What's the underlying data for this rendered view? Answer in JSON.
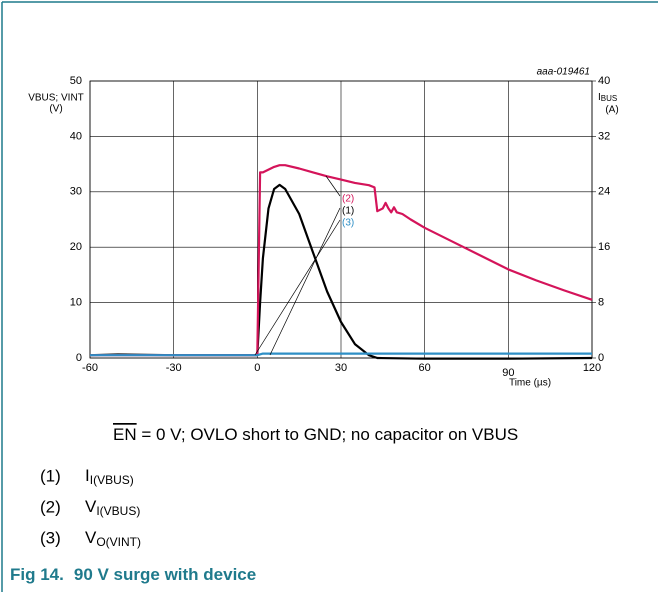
{
  "chart_data": {
    "type": "line",
    "code": "aaa-019461",
    "y_label": [
      "VBUS; VINT",
      "(V)"
    ],
    "y2_label": {
      "main": "I",
      "sub": "BUS",
      "unit": "(A)"
    },
    "x_label": "Time (µs)",
    "xlim": [
      -60,
      120
    ],
    "xticks": [
      -60,
      -30,
      0,
      30,
      60,
      90,
      120
    ],
    "ylim": [
      0,
      50
    ],
    "yticks": [
      0,
      10,
      20,
      30,
      40,
      50
    ],
    "y2lim": [
      0,
      40
    ],
    "y2ticks": [
      0,
      8,
      16,
      24,
      32,
      40
    ],
    "grid": true,
    "series": [
      {
        "name": "(1)",
        "color": "#000000",
        "axis": "y2",
        "x": [
          -60,
          -50,
          -30,
          0,
          1,
          2,
          4,
          6,
          8,
          10,
          15,
          20,
          25,
          30,
          35,
          40,
          43,
          60,
          90,
          120
        ],
        "values": [
          0.4,
          0.5,
          0.4,
          0.4,
          8,
          14.4,
          21.6,
          24.4,
          25,
          24.4,
          20.8,
          15.2,
          9.6,
          5.2,
          2,
          0.4,
          0,
          -0.1,
          -0.1,
          0
        ]
      },
      {
        "name": "(2)",
        "color": "#d4145a",
        "x": [
          -60,
          -30,
          0,
          1,
          2,
          4,
          6,
          8,
          10,
          15,
          20,
          25,
          30,
          35,
          40,
          42,
          43,
          45,
          46,
          47,
          48,
          49,
          50,
          52,
          55,
          60,
          70,
          80,
          90,
          100,
          110,
          120
        ],
        "values": [
          0.5,
          0.5,
          0.5,
          33.5,
          33.5,
          34,
          34.5,
          34.8,
          34.8,
          34.2,
          33.5,
          32.8,
          32.2,
          31.6,
          31.2,
          30.8,
          26.5,
          27,
          28,
          27,
          26.3,
          27.2,
          26.3,
          26,
          25,
          23.5,
          21,
          18.5,
          16,
          14,
          12.2,
          10.5
        ]
      },
      {
        "name": "(3)",
        "color": "#2e8fc6",
        "x": [
          -60,
          0,
          2,
          30,
          60,
          90,
          120
        ],
        "values": [
          0.5,
          0.5,
          0.8,
          0.8,
          0.8,
          0.8,
          0.8
        ]
      }
    ],
    "condition": {
      "overlined": "EN",
      "rest": " = 0 V; OVLO short to GND; no capacitor on VBUS"
    },
    "notes": [
      {
        "marker": "(1)",
        "main": "I",
        "sub": "I(VBUS)"
      },
      {
        "marker": "(2)",
        "main": "V",
        "sub": "I(VBUS)"
      },
      {
        "marker": "(3)",
        "main": "V",
        "sub": "O(VINT)"
      }
    ],
    "caption": {
      "number": "Fig 14.",
      "title": "90 V surge with device"
    }
  }
}
